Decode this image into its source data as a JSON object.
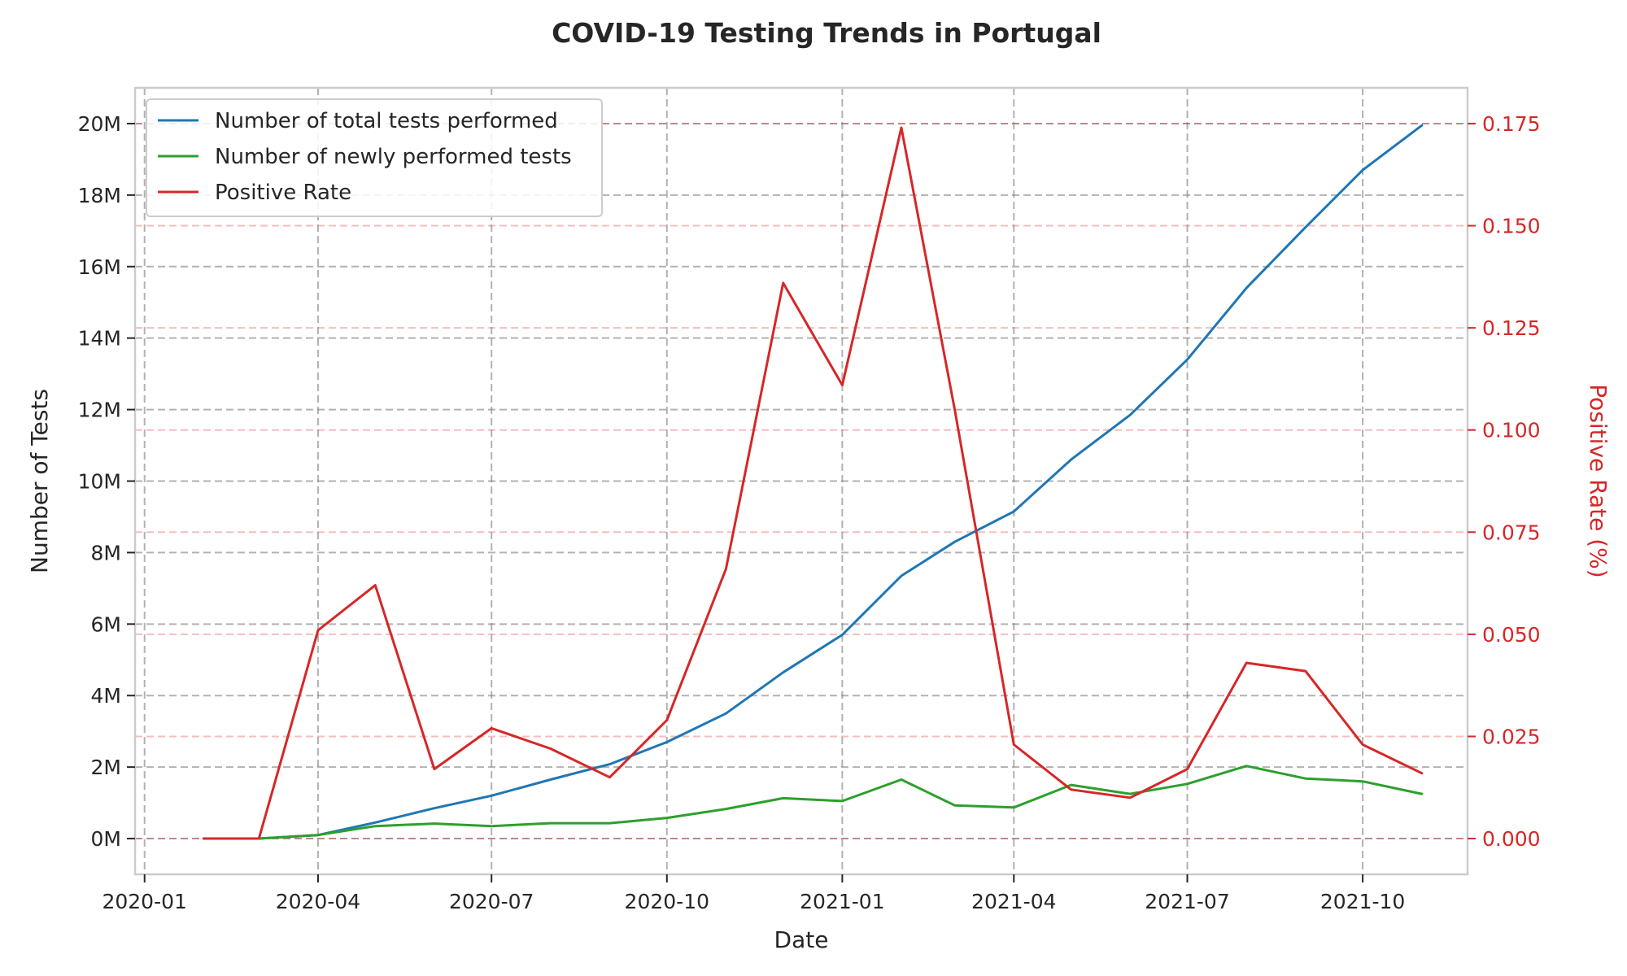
{
  "chart_data": {
    "type": "line",
    "title": "COVID-19 Testing Trends in Portugal",
    "xlabel": "Date",
    "ylabel": "Number of Tests",
    "y2label": "Positive Rate (%)",
    "x": [
      "2020-02-01",
      "2020-03-01",
      "2020-04-01",
      "2020-05-01",
      "2020-06-01",
      "2020-07-01",
      "2020-08-01",
      "2020-09-01",
      "2020-10-01",
      "2020-11-01",
      "2020-12-01",
      "2021-01-01",
      "2021-02-01",
      "2021-03-01",
      "2021-04-01",
      "2021-05-01",
      "2021-06-01",
      "2021-07-01",
      "2021-08-01",
      "2021-09-01",
      "2021-10-01",
      "2021-11-01"
    ],
    "xlim": [
      "2019-12-27",
      "2021-11-25"
    ],
    "x_ticks": [
      "2020-01-01",
      "2020-04-01",
      "2020-07-01",
      "2020-10-01",
      "2021-01-01",
      "2021-04-01",
      "2021-07-01",
      "2021-10-01"
    ],
    "x_tick_labels": [
      "2020-01",
      "2020-04",
      "2020-07",
      "2020-10",
      "2021-01",
      "2021-04",
      "2021-07",
      "2021-10"
    ],
    "ylim": [
      -1000000,
      21000000
    ],
    "y_ticks": [
      0,
      2000000,
      4000000,
      6000000,
      8000000,
      10000000,
      12000000,
      14000000,
      16000000,
      18000000,
      20000000
    ],
    "y_tick_labels": [
      "0M",
      "2M",
      "4M",
      "6M",
      "8M",
      "10M",
      "12M",
      "14M",
      "16M",
      "18M",
      "20M"
    ],
    "y2lim": [
      -0.00875,
      0.18375
    ],
    "y2_ticks": [
      0.0,
      0.025,
      0.05,
      0.075,
      0.1,
      0.125,
      0.15,
      0.175
    ],
    "y2_tick_labels": [
      "0.000",
      "0.025",
      "0.050",
      "0.075",
      "0.100",
      "0.125",
      "0.150",
      "0.175"
    ],
    "grid": true,
    "legend_position": "top-left",
    "series": [
      {
        "name": "Number of total tests performed",
        "axis": "left",
        "color": "#1f77b4",
        "values": [
          0,
          0,
          100000,
          450000,
          850000,
          1200000,
          1650000,
          2080000,
          2700000,
          3500000,
          4650000,
          5700000,
          7350000,
          8300000,
          9150000,
          10600000,
          11850000,
          13400000,
          15400000,
          17100000,
          18700000,
          19950000
        ]
      },
      {
        "name": "Number of newly performed tests",
        "axis": "left",
        "color": "#2ca02c",
        "values": [
          0,
          0,
          100000,
          350000,
          420000,
          350000,
          430000,
          430000,
          580000,
          830000,
          1130000,
          1050000,
          1650000,
          930000,
          870000,
          1500000,
          1250000,
          1530000,
          2030000,
          1680000,
          1600000,
          1250000
        ]
      },
      {
        "name": "Positive Rate",
        "axis": "right",
        "color": "#d62728",
        "values": [
          0.0,
          0.0,
          0.051,
          0.062,
          0.017,
          0.027,
          0.022,
          0.015,
          0.029,
          0.066,
          0.136,
          0.111,
          0.174,
          0.105,
          0.023,
          0.012,
          0.01,
          0.017,
          0.043,
          0.041,
          0.023,
          0.016
        ]
      }
    ]
  }
}
